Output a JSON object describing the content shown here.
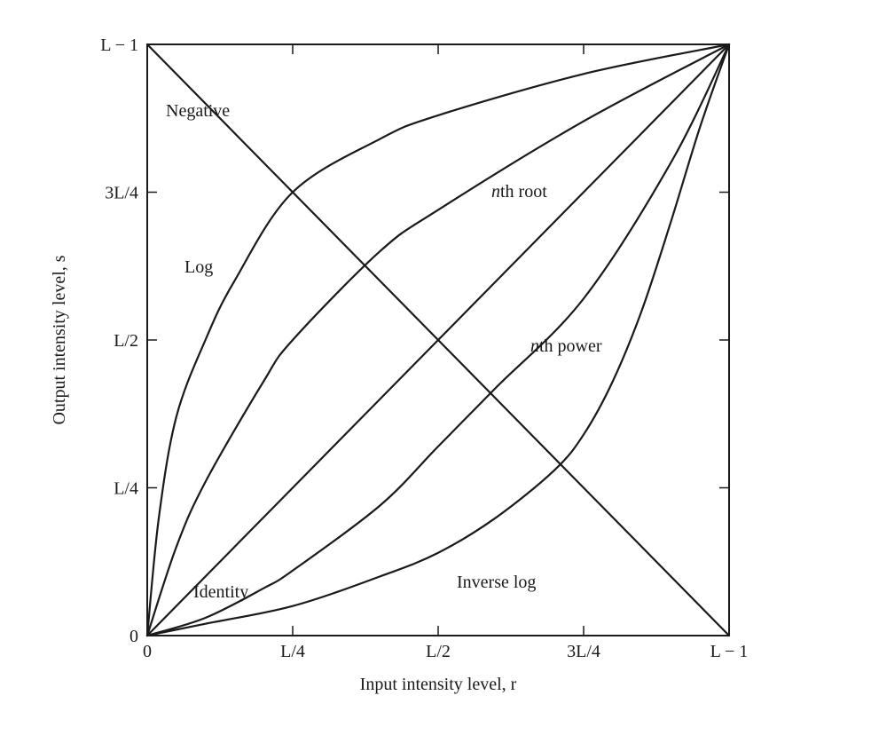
{
  "chart_data": {
    "type": "line",
    "xlabel": "Input intensity level, r",
    "ylabel": "Output intensity level, s",
    "xlim": [
      0,
      1
    ],
    "ylim": [
      0,
      1
    ],
    "grid": false,
    "x_ticks": [
      {
        "value": 0,
        "label": "0"
      },
      {
        "value": 0.25,
        "label": "L/4"
      },
      {
        "value": 0.5,
        "label": "L/2"
      },
      {
        "value": 0.75,
        "label": "3L/4"
      },
      {
        "value": 1,
        "label": "L − 1"
      }
    ],
    "y_ticks": [
      {
        "value": 0,
        "label": "0"
      },
      {
        "value": 0.25,
        "label": "L/4"
      },
      {
        "value": 0.5,
        "label": "L/2"
      },
      {
        "value": 0.75,
        "label": "3L/4"
      },
      {
        "value": 1,
        "label": "L − 1"
      }
    ],
    "series": [
      {
        "name": "Negative",
        "x": [
          0,
          0.25,
          0.5,
          0.75,
          1
        ],
        "y": [
          1,
          0.75,
          0.5,
          0.25,
          0
        ]
      },
      {
        "name": "Log",
        "x": [
          0,
          0.02,
          0.05,
          0.1,
          0.15,
          0.25,
          0.4,
          0.5,
          0.75,
          1
        ],
        "y": [
          0,
          0.2,
          0.37,
          0.5,
          0.6,
          0.75,
          0.84,
          0.88,
          0.95,
          1
        ]
      },
      {
        "name": "nth root",
        "x": [
          0,
          0.05,
          0.1,
          0.2,
          0.25,
          0.4,
          0.5,
          0.75,
          1
        ],
        "y": [
          0,
          0.15,
          0.26,
          0.43,
          0.5,
          0.65,
          0.72,
          0.87,
          1
        ]
      },
      {
        "name": "Identity",
        "x": [
          0,
          0.25,
          0.5,
          0.75,
          1
        ],
        "y": [
          0,
          0.25,
          0.5,
          0.75,
          1
        ]
      },
      {
        "name": "nth power",
        "x": [
          0,
          0.1,
          0.2,
          0.25,
          0.4,
          0.5,
          0.6,
          0.75,
          0.9,
          1
        ],
        "y": [
          0,
          0.03,
          0.08,
          0.11,
          0.22,
          0.32,
          0.42,
          0.57,
          0.8,
          1
        ]
      },
      {
        "name": "Inverse log",
        "x": [
          0,
          0.1,
          0.25,
          0.4,
          0.5,
          0.6,
          0.7,
          0.75,
          0.8,
          0.85,
          0.9,
          0.95,
          1
        ],
        "y": [
          0,
          0.02,
          0.05,
          0.1,
          0.14,
          0.2,
          0.28,
          0.34,
          0.43,
          0.55,
          0.7,
          0.86,
          1
        ]
      }
    ],
    "annotations": [
      {
        "series": "Negative",
        "text": "Negative"
      },
      {
        "series": "Log",
        "text": "Log"
      },
      {
        "series": "nth root",
        "text": "nth root"
      },
      {
        "series": "Identity",
        "text": "Identity"
      },
      {
        "series": "nth power",
        "text": "nth power"
      },
      {
        "series": "Inverse log",
        "text": "Inverse log"
      }
    ]
  }
}
